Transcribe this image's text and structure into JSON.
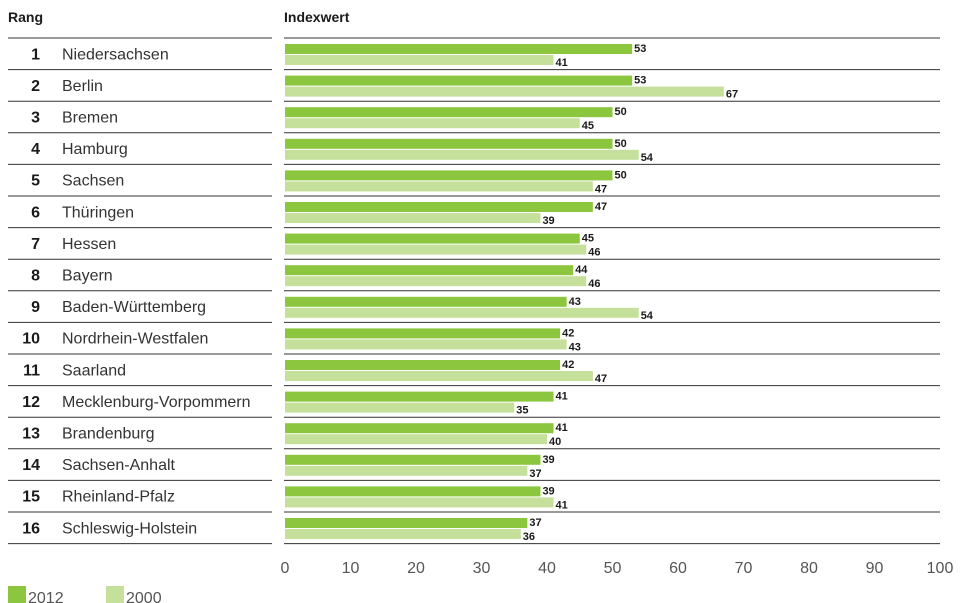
{
  "chart_data": {
    "type": "bar",
    "orientation": "horizontal",
    "rank_header": "Rang",
    "value_header": "Indexwert",
    "ranks": [
      "1",
      "2",
      "3",
      "4",
      "5",
      "6",
      "7",
      "8",
      "9",
      "10",
      "11",
      "12",
      "13",
      "14",
      "15",
      "16"
    ],
    "categories": [
      "Niedersachsen",
      "Berlin",
      "Bremen",
      "Hamburg",
      "Sachsen",
      "Thüringen",
      "Hessen",
      "Bayern",
      "Baden-Württemberg",
      "Nordrhein-Westfalen",
      "Saarland",
      "Mecklenburg-Vorpommern",
      "Brandenburg",
      "Sachsen-Anhalt",
      "Rheinland-Pfalz",
      "Schleswig-Holstein"
    ],
    "series": [
      {
        "name": "2012",
        "color": "#8cc63f",
        "values": [
          53,
          53,
          50,
          50,
          50,
          47,
          45,
          44,
          43,
          42,
          42,
          41,
          41,
          39,
          39,
          37
        ]
      },
      {
        "name": "2000",
        "color": "#c5e09b",
        "values": [
          41,
          67,
          45,
          54,
          47,
          39,
          46,
          46,
          54,
          43,
          47,
          35,
          40,
          37,
          41,
          36
        ]
      }
    ],
    "xlim": [
      0,
      100
    ],
    "xticks": [
      "0",
      "10",
      "20",
      "30",
      "40",
      "50",
      "60",
      "70",
      "80",
      "90",
      "100"
    ],
    "legend_position": "bottom-left",
    "grid": false
  }
}
